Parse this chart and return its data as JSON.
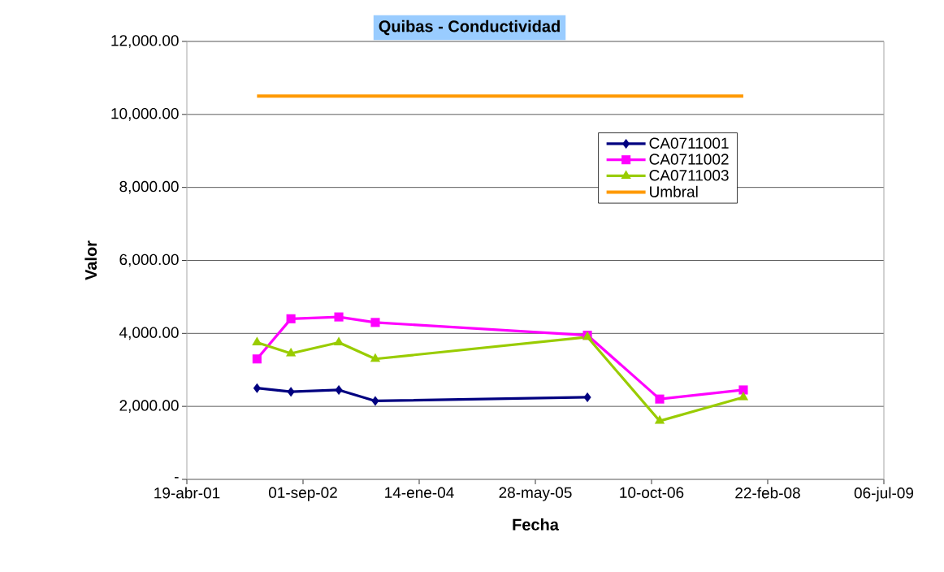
{
  "chart_data": {
    "type": "line",
    "title": "Quibas - Conductividad",
    "xlabel": "Fecha",
    "ylabel": "Valor",
    "series": [
      {
        "name": "CA0711001",
        "color": "#000080",
        "marker": "diamond",
        "x": [
          "2002-02-15",
          "2002-07-11",
          "2003-02-02",
          "2003-07-09",
          "2006-01-07"
        ],
        "values": [
          2500,
          2400,
          2450,
          2150,
          2250
        ]
      },
      {
        "name": "CA0711002",
        "color": "#ff00ff",
        "marker": "square",
        "x": [
          "2002-02-15",
          "2002-07-11",
          "2003-02-02",
          "2003-07-09",
          "2006-01-07",
          "2006-11-14",
          "2007-11-09"
        ],
        "values": [
          3300,
          4400,
          4450,
          4300,
          3950,
          2200,
          2450
        ]
      },
      {
        "name": "CA0711003",
        "color": "#99cc00",
        "marker": "triangle",
        "x": [
          "2002-02-15",
          "2002-07-11",
          "2003-02-02",
          "2003-07-09",
          "2006-01-07",
          "2006-11-14",
          "2007-11-09"
        ],
        "values": [
          3750,
          3450,
          3750,
          3300,
          3900,
          1600,
          2250
        ]
      },
      {
        "name": "Umbral",
        "color": "#ff9900",
        "marker": "none",
        "x": [
          "2002-02-15",
          "2007-11-09"
        ],
        "values": [
          10500,
          10500
        ]
      }
    ],
    "xlim": [
      "2001-04-19",
      "2009-07-06"
    ],
    "xticks": [
      {
        "value": "2001-04-19",
        "label": "19-abr-01"
      },
      {
        "value": "2002-09-01",
        "label": "01-sep-02"
      },
      {
        "value": "2004-01-14",
        "label": "14-ene-04"
      },
      {
        "value": "2005-05-28",
        "label": "28-may-05"
      },
      {
        "value": "2006-10-10",
        "label": "10-oct-06"
      },
      {
        "value": "2008-02-22",
        "label": "22-feb-08"
      },
      {
        "value": "2009-07-06",
        "label": "06-jul-09"
      }
    ],
    "ylim": [
      0,
      12000
    ],
    "yticks": [
      {
        "value": 0,
        "label": "-"
      },
      {
        "value": 2000,
        "label": "2,000.00"
      },
      {
        "value": 4000,
        "label": "4,000.00"
      },
      {
        "value": 6000,
        "label": "6,000.00"
      },
      {
        "value": 8000,
        "label": "8,000.00"
      },
      {
        "value": 10000,
        "label": "10,000.00"
      },
      {
        "value": 12000,
        "label": "12,000.00"
      }
    ],
    "grid": "y",
    "legend": "top right",
    "line_style": "solid"
  }
}
